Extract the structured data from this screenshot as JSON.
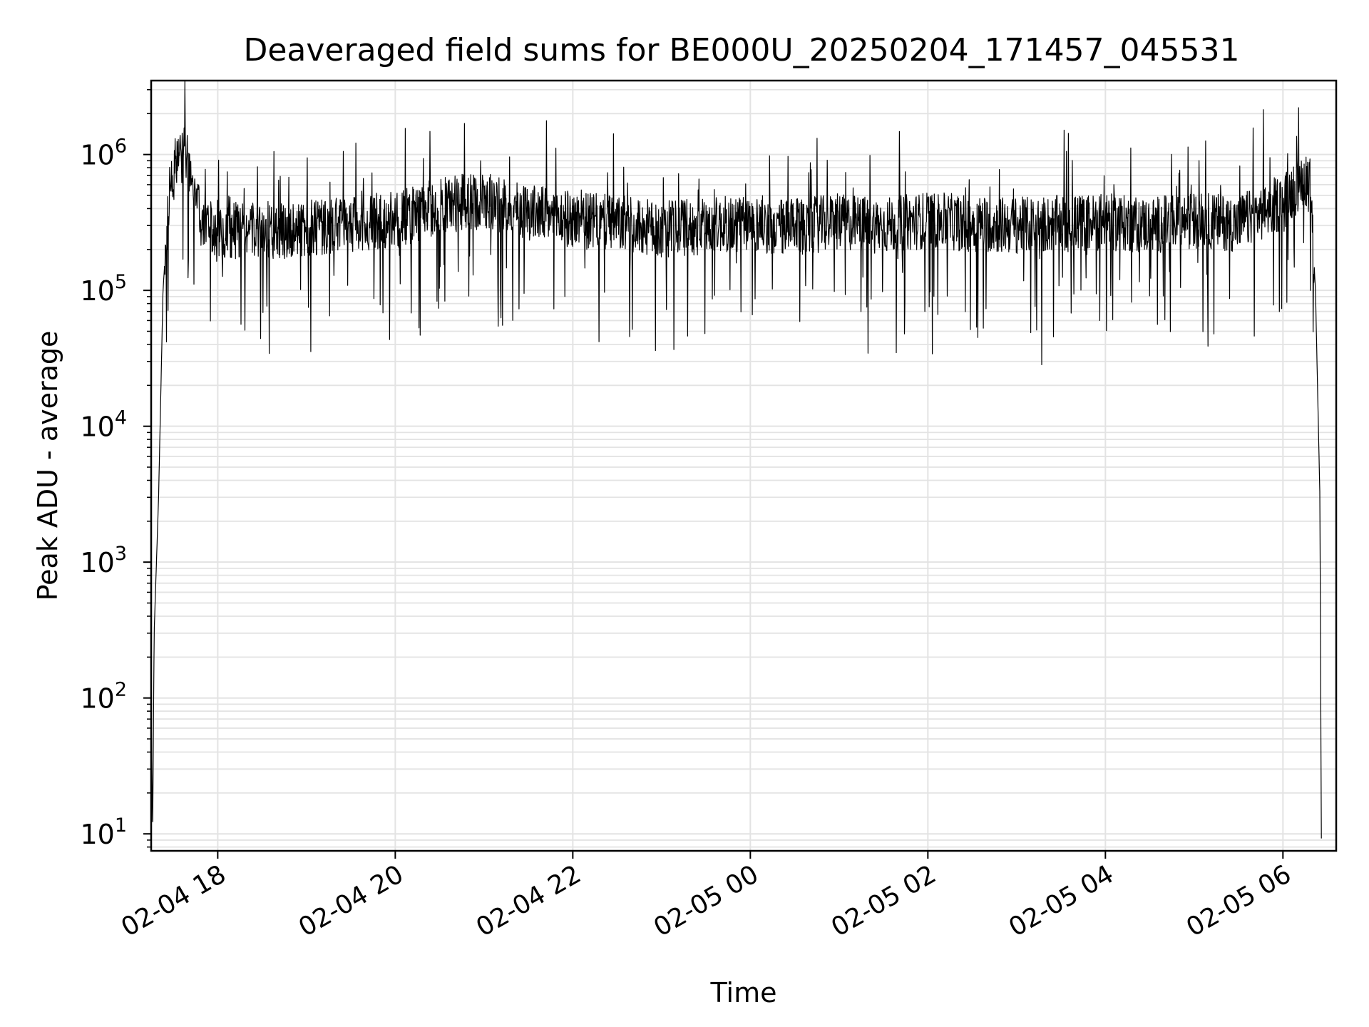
{
  "chart_data": {
    "type": "line",
    "title": "Deaveraged field sums for BE000U_20250204_171457_045531",
    "xlabel": "Time",
    "ylabel": "Peak ADU - average",
    "y_scale": "log",
    "ylim": [
      7.5,
      3500000
    ],
    "xlim": [
      "2025-02-04 17:15",
      "2025-02-05 06:36"
    ],
    "grid": true,
    "line_color": "#000000",
    "x_ticks": [
      {
        "t": "2025-02-04 18:00",
        "label": "02-04 18"
      },
      {
        "t": "2025-02-04 20:00",
        "label": "02-04 20"
      },
      {
        "t": "2025-02-04 22:00",
        "label": "02-04 22"
      },
      {
        "t": "2025-02-05 00:00",
        "label": "02-05 00"
      },
      {
        "t": "2025-02-05 02:00",
        "label": "02-05 02"
      },
      {
        "t": "2025-02-05 04:00",
        "label": "02-05 04"
      },
      {
        "t": "2025-02-05 06:00",
        "label": "02-05 06"
      }
    ],
    "y_ticks": [
      {
        "value": 10,
        "base": "10",
        "exp": "1"
      },
      {
        "value": 100,
        "base": "10",
        "exp": "2"
      },
      {
        "value": 1000,
        "base": "10",
        "exp": "3"
      },
      {
        "value": 10000,
        "base": "10",
        "exp": "4"
      },
      {
        "value": 100000,
        "base": "10",
        "exp": "5"
      },
      {
        "value": 1000000,
        "base": "10",
        "exp": "6"
      }
    ],
    "series": [
      {
        "x": [
          "2025-02-04 17:15",
          "2025-02-04 17:16",
          "2025-02-04 17:17",
          "2025-02-04 17:20",
          "2025-02-04 17:23",
          "2025-02-04 17:27",
          "2025-02-04 17:32",
          "2025-02-04 17:38",
          "2025-02-04 17:43",
          "2025-02-04 17:48",
          "2025-02-04 17:53",
          "2025-02-04 18:00",
          "2025-02-04 18:10",
          "2025-02-04 18:20",
          "2025-02-04 18:40",
          "2025-02-04 19:00",
          "2025-02-04 19:30",
          "2025-02-04 20:00",
          "2025-02-04 20:30",
          "2025-02-04 21:00",
          "2025-02-04 21:30",
          "2025-02-04 22:00",
          "2025-02-04 22:30",
          "2025-02-04 23:00",
          "2025-02-04 23:30",
          "2025-02-05 00:00",
          "2025-02-05 00:30",
          "2025-02-05 01:00",
          "2025-02-05 01:30",
          "2025-02-05 02:00",
          "2025-02-05 02:30",
          "2025-02-05 03:00",
          "2025-02-05 03:30",
          "2025-02-05 04:00",
          "2025-02-05 04:30",
          "2025-02-05 05:00",
          "2025-02-05 05:30",
          "2025-02-05 05:50",
          "2025-02-05 06:00",
          "2025-02-05 06:10",
          "2025-02-05 06:18",
          "2025-02-05 06:22",
          "2025-02-05 06:25",
          "2025-02-05 06:26"
        ],
        "y": [
          90,
          10,
          300,
          3000,
          100000,
          500000,
          900000,
          1000000,
          600000,
          350000,
          300000,
          250000,
          270000,
          300000,
          270000,
          290000,
          310000,
          330000,
          420000,
          460000,
          380000,
          330000,
          310000,
          280000,
          300000,
          310000,
          290000,
          320000,
          300000,
          330000,
          310000,
          300000,
          310000,
          320000,
          300000,
          330000,
          310000,
          400000,
          450000,
          600000,
          700000,
          100000,
          3000,
          8
        ]
      }
    ]
  }
}
